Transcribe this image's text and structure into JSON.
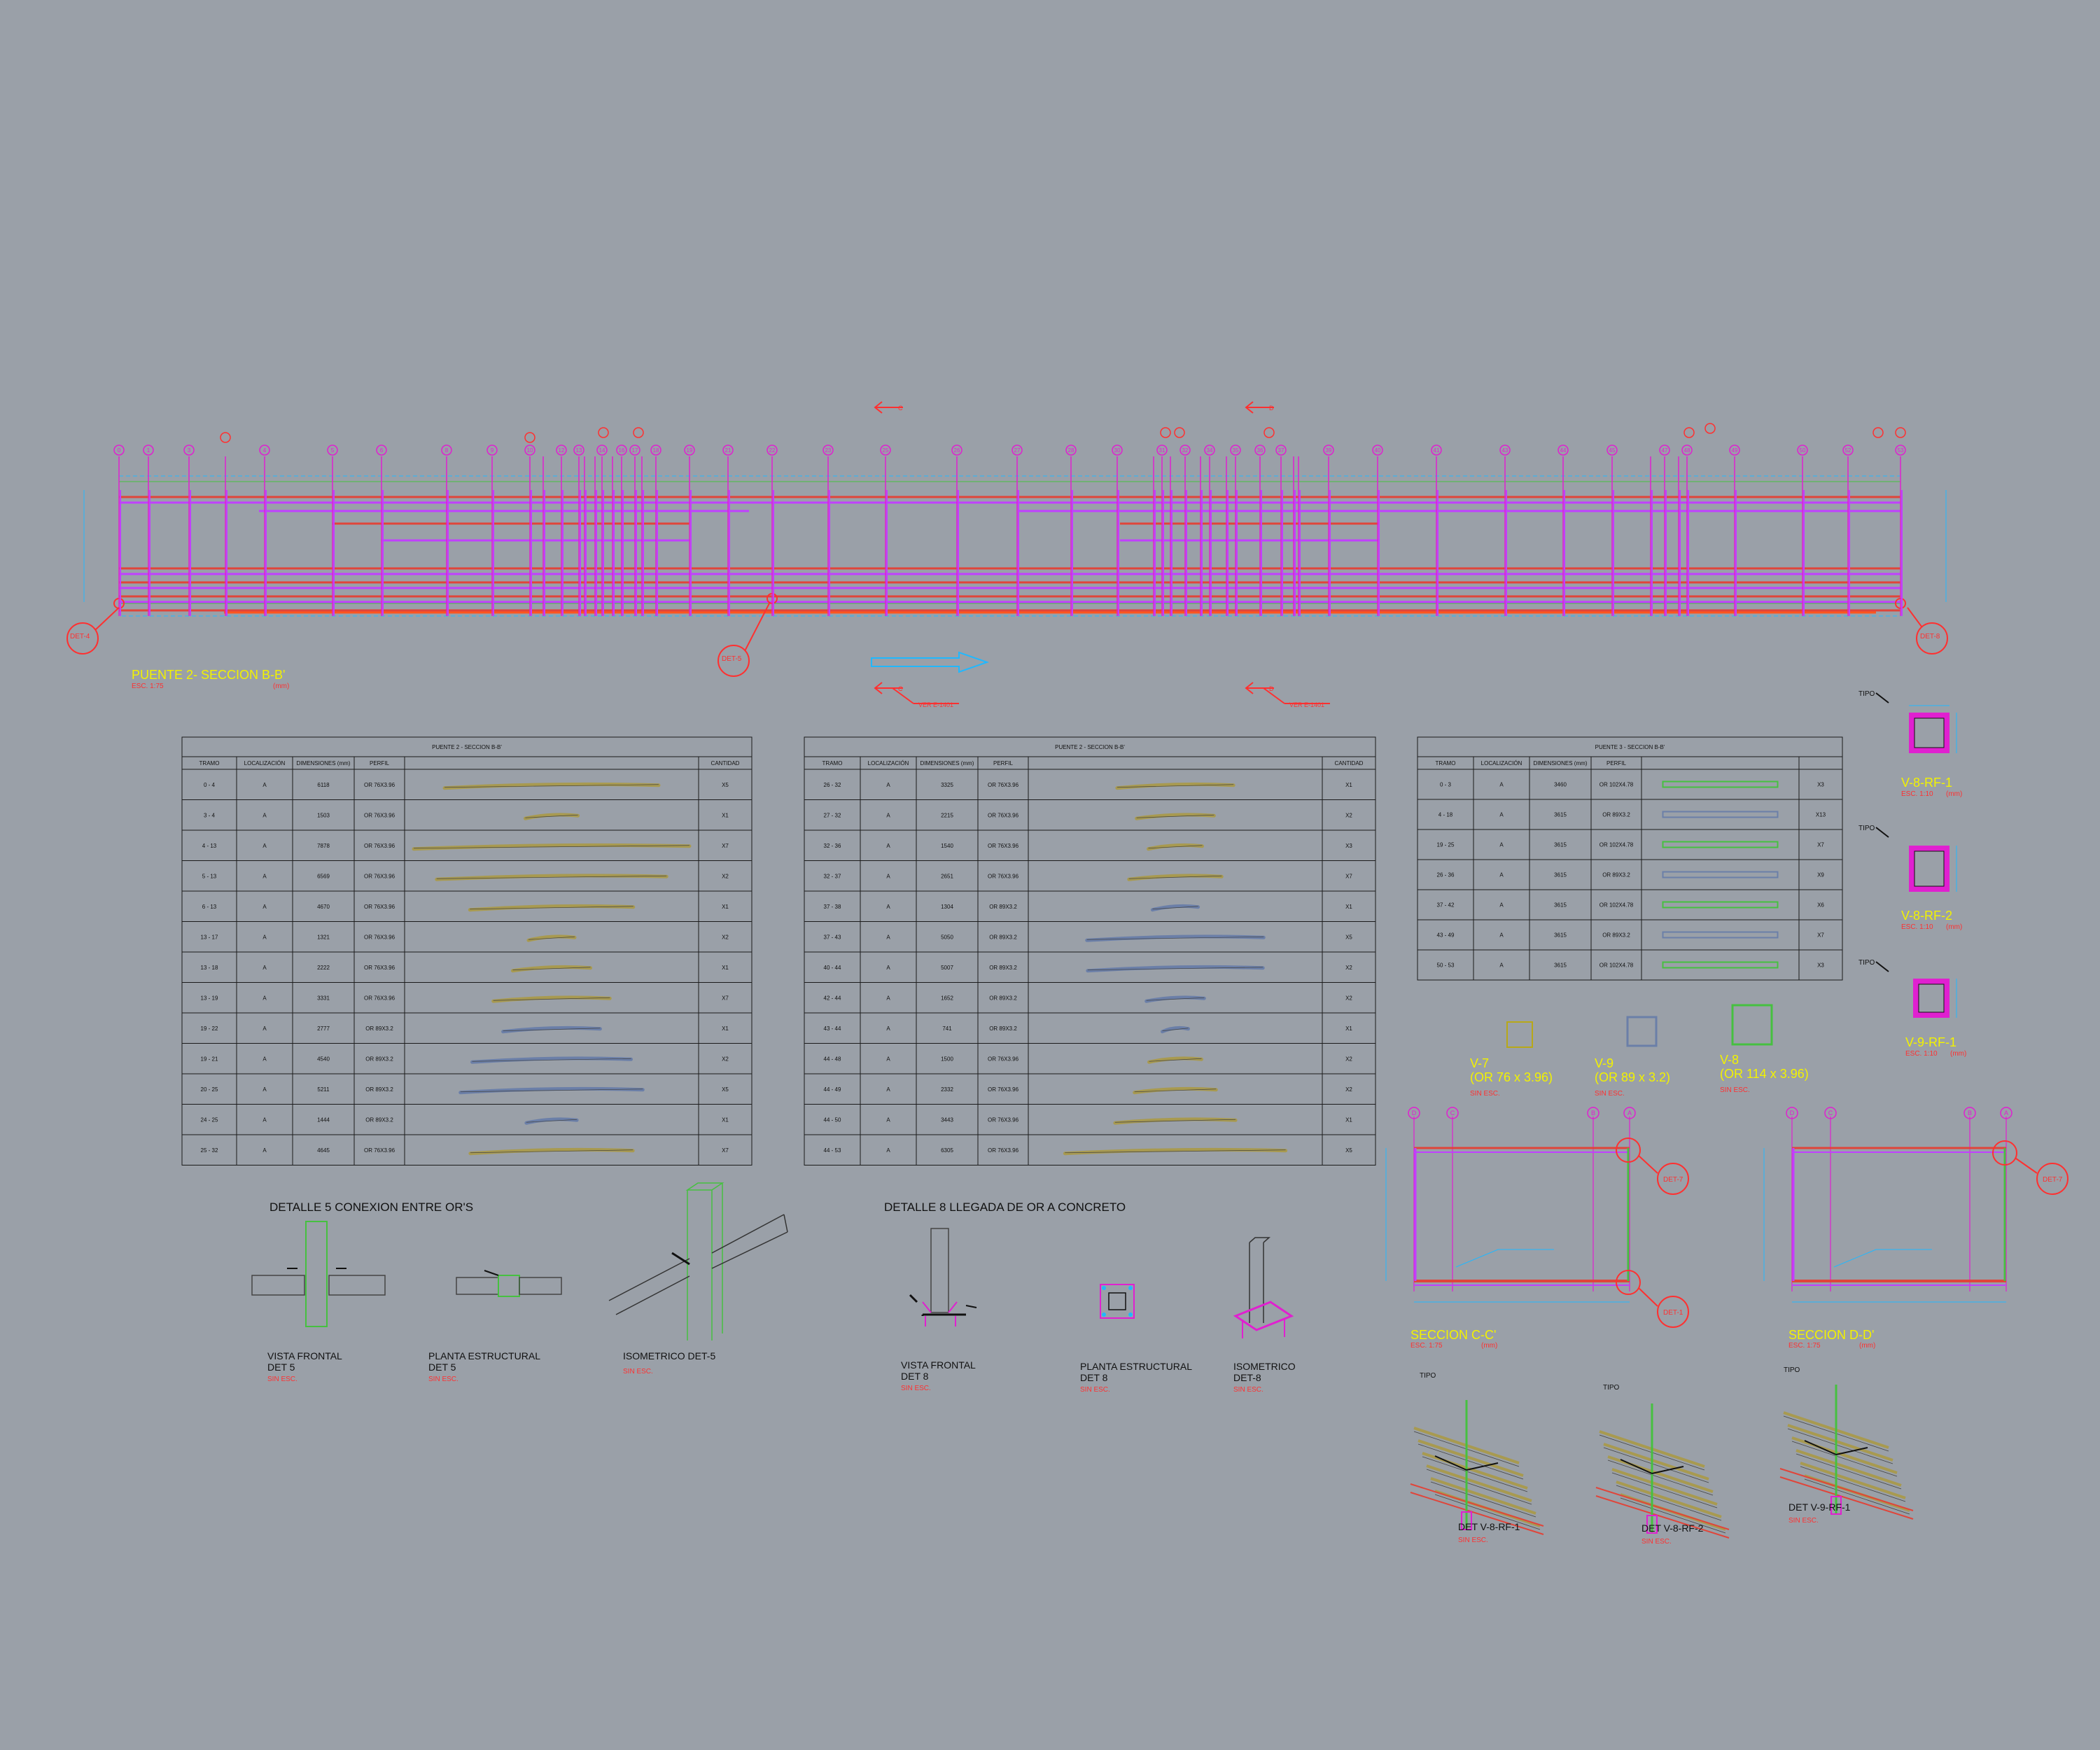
{
  "colors": {
    "background": "#9aa0a8",
    "beam_red": "#e0453a",
    "beam_magenta": "#c040ff",
    "axis_magenta": "#e020d0",
    "dimension_cyan": "#20b8ff",
    "title_yellow": "#f2f200",
    "note_red": "#ff3030",
    "table_line": "#1a1a1a",
    "profile_olive": "#a89a50",
    "profile_blue": "#6b7fa8",
    "profile_green": "#46c040"
  },
  "elevation": {
    "title": "PUENTE 2- SECCION B-B'",
    "scale": "ESC. 1:75",
    "unit": "(mm)",
    "det_markers": [
      "DET-4",
      "DET-5",
      "DET-8"
    ],
    "axes": [
      "0",
      "1",
      "2",
      "3",
      "4",
      "5",
      "6",
      "7",
      "8",
      "9",
      "10",
      "11",
      "12",
      "13",
      "14",
      "15",
      "16",
      "17",
      "18",
      "19",
      "20",
      "21",
      "22",
      "23",
      "24",
      "25",
      "26",
      "27",
      "28",
      "29",
      "30",
      "31",
      "32",
      "33",
      "34",
      "35",
      "36",
      "37",
      "38",
      "39",
      "40",
      "41",
      "42",
      "43",
      "44",
      "45",
      "46",
      "47",
      "48",
      "49",
      "50",
      "51",
      "52",
      "53"
    ],
    "section_labels": [
      "C",
      "C",
      "D",
      "D"
    ],
    "ver_notes": [
      "VER E-1401",
      "VER E-1401"
    ]
  },
  "table1": {
    "title": "PUENTE 2 - SECCION B-B'",
    "headers": [
      "TRAMO",
      "LOCALIZACIÓN",
      "DIMENSIONES (mm)",
      "PERFIL",
      "",
      "CANTIDAD"
    ],
    "rows": [
      [
        "0 - 4",
        "A",
        "6118",
        "OR 76X3.96",
        "X5"
      ],
      [
        "3 - 4",
        "A",
        "1503",
        "OR 76X3.96",
        "X1"
      ],
      [
        "4 - 13",
        "A",
        "7878",
        "OR 76X3.96",
        "X7"
      ],
      [
        "5 - 13",
        "A",
        "6569",
        "OR 76X3.96",
        "X2"
      ],
      [
        "6 - 13",
        "A",
        "4670",
        "OR 76X3.96",
        "X1"
      ],
      [
        "13 - 17",
        "A",
        "1321",
        "OR 76X3.96",
        "X2"
      ],
      [
        "13 - 18",
        "A",
        "2222",
        "OR 76X3.96",
        "X1"
      ],
      [
        "13 - 19",
        "A",
        "3331",
        "OR 76X3.96",
        "X7"
      ],
      [
        "19 - 22",
        "A",
        "2777",
        "OR 89X3.2",
        "X1"
      ],
      [
        "19 - 21",
        "A",
        "4540",
        "OR 89X3.2",
        "X2"
      ],
      [
        "20 - 25",
        "A",
        "5211",
        "OR 89X3.2",
        "X5"
      ],
      [
        "24 - 25",
        "A",
        "1444",
        "OR 89X3.2",
        "X1"
      ],
      [
        "25 - 32",
        "A",
        "4645",
        "OR 76X3.96",
        "X7"
      ]
    ]
  },
  "table2": {
    "title": "PUENTE 2 - SECCION B-B'",
    "headers": [
      "TRAMO",
      "LOCALIZACIÓN",
      "DIMENSIONES (mm)",
      "PERFIL",
      "",
      "CANTIDAD"
    ],
    "rows": [
      [
        "26 - 32",
        "A",
        "3325",
        "OR 76X3.96",
        "X1"
      ],
      [
        "27 - 32",
        "A",
        "2215",
        "OR 76X3.96",
        "X2"
      ],
      [
        "32 - 36",
        "A",
        "1540",
        "OR 76X3.96",
        "X3"
      ],
      [
        "32 - 37",
        "A",
        "2651",
        "OR 76X3.96",
        "X7"
      ],
      [
        "37 - 38",
        "A",
        "1304",
        "OR 89X3.2",
        "X1"
      ],
      [
        "37 - 43",
        "A",
        "5050",
        "OR 89X3.2",
        "X5"
      ],
      [
        "40 - 44",
        "A",
        "5007",
        "OR 89X3.2",
        "X2"
      ],
      [
        "42 - 44",
        "A",
        "1652",
        "OR 89X3.2",
        "X2"
      ],
      [
        "43 - 44",
        "A",
        "741",
        "OR 89X3.2",
        "X1"
      ],
      [
        "44 - 48",
        "A",
        "1500",
        "OR 76X3.96",
        "X2"
      ],
      [
        "44 - 49",
        "A",
        "2332",
        "OR 76X3.96",
        "X2"
      ],
      [
        "44 - 50",
        "A",
        "3443",
        "OR 76X3.96",
        "X1"
      ],
      [
        "44 - 53",
        "A",
        "6305",
        "OR 76X3.96",
        "X5"
      ]
    ]
  },
  "table3": {
    "title": "PUENTE 3 - SECCION B-B'",
    "headers": [
      "TRAMO",
      "LOCALIZACIÓN",
      "DIMENSIONES (mm)",
      "PERFIL",
      "",
      ""
    ],
    "rows": [
      [
        "0 - 3",
        "A",
        "3460",
        "OR 102X4.78",
        "X3"
      ],
      [
        "4 - 18",
        "A",
        "3615",
        "OR 89X3.2",
        "X13"
      ],
      [
        "19 - 25",
        "A",
        "3615",
        "OR 102X4.78",
        "X7"
      ],
      [
        "26 - 36",
        "A",
        "3615",
        "OR 89X3.2",
        "X9"
      ],
      [
        "37 - 42",
        "A",
        "3615",
        "OR 102X4.78",
        "X6"
      ],
      [
        "43 - 49",
        "A",
        "3615",
        "OR 89X3.2",
        "X7"
      ],
      [
        "50 - 53",
        "A",
        "3615",
        "OR 102X4.78",
        "X3"
      ]
    ]
  },
  "sections": [
    {
      "name": "V-8-RF-1",
      "scale": "ESC. 1:10",
      "unit": "(mm)"
    },
    {
      "name": "V-8-RF-2",
      "scale": "ESC. 1:10",
      "unit": "(mm)"
    },
    {
      "name": "V-9-RF-1",
      "scale": "ESC. 1:10",
      "unit": "(mm)"
    }
  ],
  "tipo_label": "TIPO",
  "profiles": [
    {
      "name": "V-7",
      "size": "(OR 76 x 3.96)",
      "note": "SIN ESC."
    },
    {
      "name": "V-9",
      "size": "(OR 89 x 3.2)",
      "note": "SIN ESC."
    },
    {
      "name": "V-8",
      "size": "(OR 114 x 3.96)",
      "note": "SIN ESC."
    }
  ],
  "detail5": {
    "title": "DETALLE 5 CONEXION ENTRE OR'S",
    "views": [
      {
        "line1": "VISTA FRONTAL",
        "line2": "DET 5",
        "note": "SIN ESC."
      },
      {
        "line1": "PLANTA ESTRUCTURAL",
        "line2": "DET 5",
        "note": "SIN ESC."
      },
      {
        "line1": "ISOMETRICO DET-5",
        "line2": "",
        "note": "SIN ESC."
      }
    ]
  },
  "detail8": {
    "title": "DETALLE 8 LLEGADA DE OR A CONCRETO",
    "views": [
      {
        "line1": "VISTA FRONTAL",
        "line2": "DET 8",
        "note": "SIN ESC."
      },
      {
        "line1": "PLANTA ESTRUCTURAL",
        "line2": "DET 8",
        "note": "SIN ESC."
      },
      {
        "line1": "ISOMETRICO",
        "line2": "DET-8",
        "note": "SIN ESC."
      }
    ]
  },
  "section_cc": {
    "title": "SECCION C-C'",
    "scale": "ESC. 1:75",
    "unit": "(mm)",
    "axes": [
      "D",
      "C",
      "B",
      "A"
    ]
  },
  "section_dd": {
    "title": "SECCION D-D'",
    "scale": "ESC. 1:75",
    "unit": "(mm)",
    "axes": [
      "D",
      "C",
      "B",
      "A"
    ]
  },
  "det_refs": [
    "DET-7",
    "DET-1",
    "DET-7"
  ],
  "rf_details": [
    {
      "name": "DET V-8-RF-1",
      "note": "SIN ESC."
    },
    {
      "name": "DET V-8-RF-2",
      "note": "SIN ESC."
    },
    {
      "name": "DET V-9-RF-1",
      "note": "SIN ESC."
    }
  ]
}
